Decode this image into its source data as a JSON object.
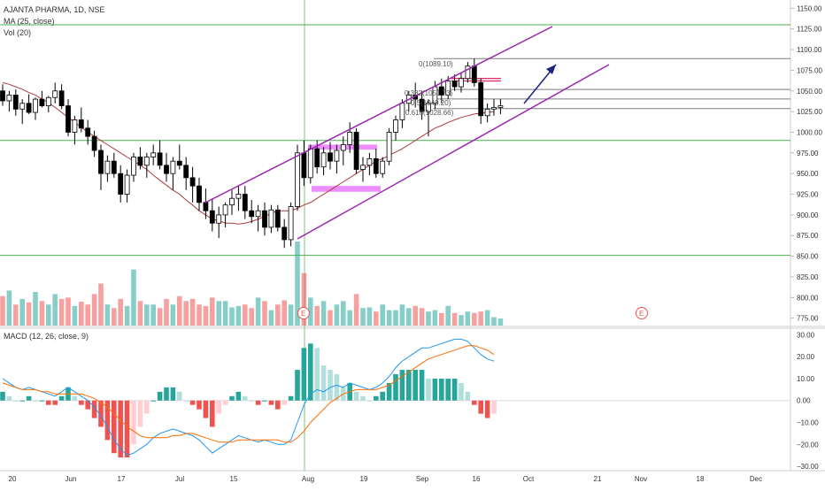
{
  "header": {
    "symbol_line": "AJANTA PHARMA, 1D, NSE",
    "ma_line": "MA (25, close)",
    "vol_line": "Vol (20)",
    "macd_line": "MACD (12, 26, close, 9)"
  },
  "colors": {
    "up": "#26a69a",
    "down": "#ef5350",
    "candle_body_up": "#ffffff",
    "candle_body_down": "#000000",
    "ma": "#b03a3a",
    "channel": "#9c27b0",
    "hline": "#4caf50",
    "arrow": "#1a237e",
    "macd": "#2196f3",
    "signal": "#ff6d00",
    "box": "#e040fb",
    "fib": "#787b86"
  },
  "price_axis": {
    "ticks": [
      "1150.00",
      "1125.00",
      "1100.00",
      "1075.00",
      "1050.00",
      "1025.00",
      "1000.00",
      "975.00",
      "950.00",
      "925.00",
      "900.00",
      "875.00",
      "850.00",
      "825.00",
      "800.00",
      "775.00"
    ]
  },
  "macd_axis": {
    "ticks": [
      "30.00",
      "20.00",
      "10.00",
      "0.00",
      "−10.00",
      "−20.00",
      "−30.00"
    ]
  },
  "time_axis": {
    "ticks": [
      "20",
      "Jun",
      "17",
      "Jul",
      "15",
      "Aug",
      "19",
      "Sep",
      "16",
      "Oct",
      "21",
      "Nov",
      "18",
      "Dec"
    ]
  },
  "fib_labels": [
    "0(1089.10)",
    "0.382(1051.73)",
    "0.5(1040.20)",
    "0.618(1028.66)"
  ],
  "earnings_markers": [
    "E",
    "E"
  ],
  "chart_data": {
    "type": "candlestick",
    "price_ylim": [
      765,
      1160
    ],
    "horizontal_levels": [
      1130,
      990,
      851
    ],
    "fib_levels": [
      1089.1,
      1051.73,
      1040.2,
      1028.66
    ],
    "candles": [
      {
        "o": 1050,
        "h": 1058,
        "l": 1032,
        "c": 1038
      },
      {
        "o": 1038,
        "h": 1050,
        "l": 1025,
        "c": 1045
      },
      {
        "o": 1045,
        "h": 1052,
        "l": 1020,
        "c": 1028
      },
      {
        "o": 1028,
        "h": 1040,
        "l": 1010,
        "c": 1035
      },
      {
        "o": 1035,
        "h": 1046,
        "l": 1022,
        "c": 1024
      },
      {
        "o": 1024,
        "h": 1042,
        "l": 1015,
        "c": 1040
      },
      {
        "o": 1040,
        "h": 1050,
        "l": 1030,
        "c": 1032
      },
      {
        "o": 1032,
        "h": 1044,
        "l": 1024,
        "c": 1042
      },
      {
        "o": 1042,
        "h": 1060,
        "l": 1035,
        "c": 1050
      },
      {
        "o": 1050,
        "h": 1058,
        "l": 1028,
        "c": 1032
      },
      {
        "o": 1032,
        "h": 1040,
        "l": 995,
        "c": 1000
      },
      {
        "o": 1000,
        "h": 1020,
        "l": 985,
        "c": 1015
      },
      {
        "o": 1015,
        "h": 1030,
        "l": 1000,
        "c": 1005
      },
      {
        "o": 1005,
        "h": 1015,
        "l": 985,
        "c": 995
      },
      {
        "o": 995,
        "h": 1002,
        "l": 970,
        "c": 978
      },
      {
        "o": 978,
        "h": 985,
        "l": 930,
        "c": 950
      },
      {
        "o": 950,
        "h": 972,
        "l": 940,
        "c": 965
      },
      {
        "o": 965,
        "h": 975,
        "l": 945,
        "c": 950
      },
      {
        "o": 950,
        "h": 960,
        "l": 915,
        "c": 925
      },
      {
        "o": 925,
        "h": 955,
        "l": 915,
        "c": 948
      },
      {
        "o": 948,
        "h": 975,
        "l": 940,
        "c": 970
      },
      {
        "o": 970,
        "h": 982,
        "l": 955,
        "c": 960
      },
      {
        "o": 960,
        "h": 975,
        "l": 945,
        "c": 970
      },
      {
        "o": 970,
        "h": 985,
        "l": 960,
        "c": 975
      },
      {
        "o": 975,
        "h": 990,
        "l": 955,
        "c": 960
      },
      {
        "o": 960,
        "h": 975,
        "l": 940,
        "c": 950
      },
      {
        "o": 950,
        "h": 970,
        "l": 930,
        "c": 965
      },
      {
        "o": 965,
        "h": 985,
        "l": 955,
        "c": 960
      },
      {
        "o": 960,
        "h": 970,
        "l": 930,
        "c": 945
      },
      {
        "o": 945,
        "h": 958,
        "l": 915,
        "c": 935
      },
      {
        "o": 935,
        "h": 945,
        "l": 905,
        "c": 915
      },
      {
        "o": 915,
        "h": 932,
        "l": 895,
        "c": 905
      },
      {
        "o": 905,
        "h": 920,
        "l": 880,
        "c": 890
      },
      {
        "o": 890,
        "h": 910,
        "l": 872,
        "c": 900
      },
      {
        "o": 900,
        "h": 915,
        "l": 885,
        "c": 912
      },
      {
        "o": 912,
        "h": 930,
        "l": 900,
        "c": 920
      },
      {
        "o": 920,
        "h": 935,
        "l": 905,
        "c": 925
      },
      {
        "o": 925,
        "h": 935,
        "l": 895,
        "c": 905
      },
      {
        "o": 905,
        "h": 918,
        "l": 890,
        "c": 898
      },
      {
        "o": 898,
        "h": 912,
        "l": 880,
        "c": 905
      },
      {
        "o": 905,
        "h": 915,
        "l": 875,
        "c": 885
      },
      {
        "o": 885,
        "h": 912,
        "l": 878,
        "c": 906
      },
      {
        "o": 906,
        "h": 912,
        "l": 880,
        "c": 885
      },
      {
        "o": 885,
        "h": 895,
        "l": 860,
        "c": 870
      },
      {
        "o": 870,
        "h": 915,
        "l": 862,
        "c": 910
      },
      {
        "o": 910,
        "h": 985,
        "l": 905,
        "c": 975
      },
      {
        "o": 975,
        "h": 990,
        "l": 935,
        "c": 945
      },
      {
        "o": 945,
        "h": 985,
        "l": 938,
        "c": 980
      },
      {
        "o": 980,
        "h": 990,
        "l": 950,
        "c": 958
      },
      {
        "o": 958,
        "h": 982,
        "l": 948,
        "c": 975
      },
      {
        "o": 975,
        "h": 988,
        "l": 955,
        "c": 965
      },
      {
        "o": 965,
        "h": 985,
        "l": 950,
        "c": 978
      },
      {
        "o": 978,
        "h": 995,
        "l": 960,
        "c": 985
      },
      {
        "o": 985,
        "h": 1012,
        "l": 975,
        "c": 1000
      },
      {
        "o": 1000,
        "h": 1005,
        "l": 950,
        "c": 955
      },
      {
        "o": 955,
        "h": 970,
        "l": 940,
        "c": 960
      },
      {
        "o": 960,
        "h": 975,
        "l": 948,
        "c": 968
      },
      {
        "o": 968,
        "h": 980,
        "l": 945,
        "c": 950
      },
      {
        "o": 950,
        "h": 970,
        "l": 945,
        "c": 965
      },
      {
        "o": 965,
        "h": 1005,
        "l": 960,
        "c": 1000
      },
      {
        "o": 1000,
        "h": 1020,
        "l": 990,
        "c": 1015
      },
      {
        "o": 1015,
        "h": 1040,
        "l": 1005,
        "c": 1035
      },
      {
        "o": 1035,
        "h": 1050,
        "l": 1025,
        "c": 1045
      },
      {
        "o": 1045,
        "h": 1060,
        "l": 1030,
        "c": 1040
      },
      {
        "o": 1040,
        "h": 1050,
        "l": 1015,
        "c": 1025
      },
      {
        "o": 1025,
        "h": 1040,
        "l": 995,
        "c": 1035
      },
      {
        "o": 1035,
        "h": 1062,
        "l": 1028,
        "c": 1055
      },
      {
        "o": 1055,
        "h": 1065,
        "l": 1035,
        "c": 1045
      },
      {
        "o": 1045,
        "h": 1068,
        "l": 1040,
        "c": 1062
      },
      {
        "o": 1062,
        "h": 1070,
        "l": 1050,
        "c": 1055
      },
      {
        "o": 1055,
        "h": 1072,
        "l": 1048,
        "c": 1065
      },
      {
        "o": 1065,
        "h": 1085,
        "l": 1060,
        "c": 1080
      },
      {
        "o": 1080,
        "h": 1089,
        "l": 1055,
        "c": 1060
      },
      {
        "o": 1060,
        "h": 1065,
        "l": 1010,
        "c": 1020
      },
      {
        "o": 1020,
        "h": 1035,
        "l": 1012,
        "c": 1028
      },
      {
        "o": 1028,
        "h": 1040,
        "l": 1020,
        "c": 1030
      },
      {
        "o": 1030,
        "h": 1040,
        "l": 1022,
        "c": 1032
      }
    ],
    "ma25": [
      1060,
      1058,
      1055,
      1052,
      1048,
      1045,
      1040,
      1036,
      1030,
      1024,
      1018,
      1012,
      1006,
      1000,
      995,
      990,
      985,
      980,
      975,
      970,
      965,
      960,
      955,
      948,
      942,
      936,
      930,
      925,
      918,
      912,
      905,
      900,
      895,
      893,
      890,
      890,
      889,
      890,
      892,
      895,
      898,
      902,
      905,
      905,
      905,
      908,
      912,
      915,
      920,
      925,
      930,
      935,
      940,
      945,
      950,
      955,
      960,
      965,
      968,
      972,
      976,
      980,
      985,
      990,
      995,
      1000,
      1005,
      1008,
      1012,
      1015,
      1018,
      1020,
      1022,
      1023,
      1024,
      1025
    ],
    "volume": [
      42,
      50,
      30,
      38,
      33,
      48,
      35,
      30,
      45,
      38,
      40,
      28,
      34,
      30,
      45,
      60,
      30,
      25,
      38,
      28,
      80,
      35,
      30,
      30,
      25,
      38,
      30,
      42,
      35,
      38,
      30,
      28,
      40,
      35,
      35,
      26,
      28,
      30,
      25,
      40,
      35,
      22,
      30,
      36,
      30,
      120,
      75,
      40,
      28,
      35,
      22,
      30,
      35,
      22,
      45,
      25,
      26,
      20,
      30,
      22,
      22,
      30,
      25,
      28,
      25,
      20,
      22,
      18,
      28,
      18,
      15,
      20,
      18,
      20,
      22,
      12,
      10
    ],
    "macd": [
      10,
      8,
      6,
      5,
      6,
      5,
      4,
      3,
      2,
      4,
      6,
      4,
      2,
      0,
      -3,
      -7,
      -12,
      -18,
      -22,
      -25,
      -24,
      -22,
      -20,
      -17,
      -15,
      -14,
      -13,
      -14,
      -15,
      -16,
      -18,
      -21,
      -24,
      -22,
      -20,
      -18,
      -16,
      -17,
      -18,
      -19,
      -18,
      -19,
      -20,
      -20,
      -18,
      -10,
      -2,
      3,
      5,
      4,
      6,
      7,
      6,
      8,
      7,
      6,
      5,
      6,
      8,
      11,
      15,
      18,
      20,
      22,
      24,
      24,
      25,
      26,
      27,
      28,
      28,
      27,
      24,
      21,
      19,
      18
    ],
    "signal": [
      8,
      7,
      6,
      5,
      5,
      5,
      4,
      4,
      3,
      3,
      3,
      3,
      3,
      2,
      1,
      -1,
      -3,
      -6,
      -9,
      -12,
      -14,
      -16,
      -17,
      -17,
      -17,
      -17,
      -16,
      -16,
      -15,
      -15,
      -16,
      -17,
      -18,
      -19,
      -19,
      -19,
      -18,
      -18,
      -18,
      -18,
      -18,
      -18,
      -18,
      -19,
      -19,
      -17,
      -14,
      -10,
      -7,
      -4,
      -1,
      1,
      3,
      4,
      5,
      5,
      5,
      5,
      6,
      7,
      9,
      11,
      13,
      15,
      17,
      19,
      20,
      21,
      22,
      23,
      24,
      25,
      25,
      24,
      23,
      21
    ],
    "macd_ylim": [
      -32,
      33
    ]
  }
}
